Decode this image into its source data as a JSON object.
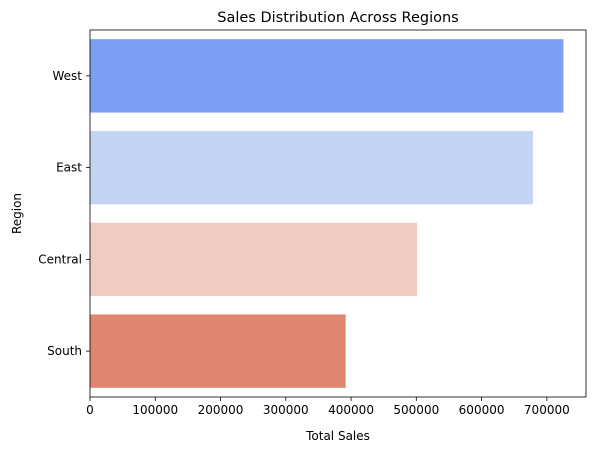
{
  "chart_data": {
    "type": "bar",
    "orientation": "horizontal",
    "title": "Sales Distribution Across Regions",
    "xlabel": "Total Sales",
    "ylabel": "Region",
    "categories": [
      "West",
      "East",
      "Central",
      "South"
    ],
    "values": [
      725458,
      678781,
      501240,
      391722
    ],
    "colors": [
      "#7b9ff2",
      "#c4d5f3",
      "#f0cbbf",
      "#e1866e"
    ],
    "xlim": [
      0,
      760000
    ],
    "xticks": [
      0,
      100000,
      200000,
      300000,
      400000,
      500000,
      600000,
      700000
    ],
    "xtick_labels": [
      "0",
      "100000",
      "200000",
      "300000",
      "400000",
      "500000",
      "600000",
      "700000"
    ],
    "grid": false,
    "legend": "none"
  }
}
